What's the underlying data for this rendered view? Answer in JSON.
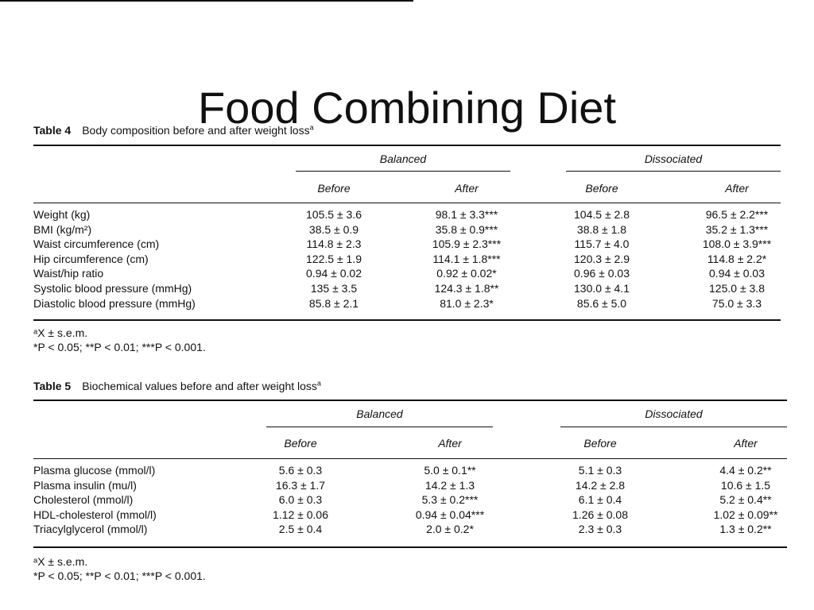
{
  "slide": {
    "title": "Food Combining Diet"
  },
  "table4": {
    "caption_label": "Table 4",
    "caption_text": "Body composition before and after weight loss",
    "caption_sup": "a",
    "group_headers": [
      "Balanced",
      "Dissociated"
    ],
    "sub_headers": [
      "Before",
      "After",
      "Before",
      "After"
    ],
    "rows": [
      {
        "label": "Weight (kg)",
        "cells": [
          "105.5 ± 3.6",
          "98.1 ± 3.3***",
          "104.5 ± 2.8",
          "96.5 ± 2.2***"
        ]
      },
      {
        "label": "BMI (kg/m²)",
        "cells": [
          "38.5 ± 0.9",
          "35.8 ± 0.9***",
          "38.8 ± 1.8",
          "35.2 ± 1.3***"
        ]
      },
      {
        "label": "Waist circumference (cm)",
        "cells": [
          "114.8 ± 2.3",
          "105.9 ± 2.3***",
          "115.7 ± 4.0",
          "108.0 ± 3.9***"
        ]
      },
      {
        "label": "Hip circumference (cm)",
        "cells": [
          "122.5 ± 1.9",
          "114.1 ± 1.8***",
          "120.3 ± 2.9",
          "114.8 ± 2.2*"
        ]
      },
      {
        "label": "Waist/hip ratio",
        "cells": [
          "0.94 ± 0.02",
          "0.92 ± 0.02*",
          "0.96 ± 0.03",
          "0.94 ± 0.03"
        ]
      },
      {
        "label": "Systolic blood pressure (mmHg)",
        "cells": [
          "135 ± 3.5",
          "124.3 ± 1.8**",
          "130.0 ± 4.1",
          "125.0 ± 3.8"
        ]
      },
      {
        "label": "Diastolic blood pressure (mmHg)",
        "cells": [
          "85.8 ± 2.1",
          "81.0 ± 2.3*",
          "85.6 ± 5.0",
          "75.0 ± 3.3"
        ]
      }
    ],
    "footnotes": [
      "ᵃX ± s.e.m.",
      "*P < 0.05; **P < 0.01; ***P < 0.001."
    ]
  },
  "table5": {
    "caption_label": "Table 5",
    "caption_text": "Biochemical values before and after weight loss",
    "caption_sup": "a",
    "group_headers": [
      "Balanced",
      "Dissociated"
    ],
    "sub_headers": [
      "Before",
      "After",
      "Before",
      "After"
    ],
    "rows": [
      {
        "label": "Plasma glucose (mmol/l)",
        "cells": [
          "5.6 ± 0.3",
          "5.0 ± 0.1**",
          "5.1 ± 0.3",
          "4.4 ± 0.2**"
        ]
      },
      {
        "label": "Plasma insulin (mu/l)",
        "cells": [
          "16.3 ± 1.7",
          "14.2 ± 1.3",
          "14.2 ± 2.8",
          "10.6 ± 1.5"
        ]
      },
      {
        "label": "Cholesterol (mmol/l)",
        "cells": [
          "6.0 ± 0.3",
          "5.3 ± 0.2***",
          "6.1 ± 0.4",
          "5.2 ± 0.4**"
        ]
      },
      {
        "label": "HDL-cholesterol (mmol/l)",
        "cells": [
          "1.12 ± 0.06",
          "0.94 ± 0.04***",
          "1.26 ± 0.08",
          "1.02 ± 0.09**"
        ]
      },
      {
        "label": "Triacylglycerol (mmol/l)",
        "cells": [
          "2.5 ± 0.4",
          "2.0 ± 0.2*",
          "2.3 ± 0.3",
          "1.3 ± 0.2**"
        ]
      }
    ],
    "footnotes": [
      "ᵃX ± s.e.m.",
      "*P < 0.05; **P < 0.01; ***P < 0.001."
    ]
  }
}
